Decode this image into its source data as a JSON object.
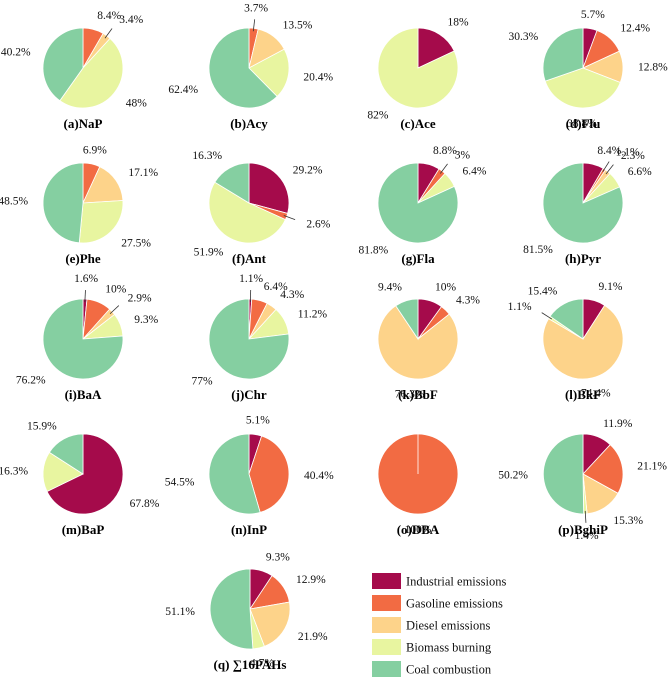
{
  "colors": {
    "industrial": "#a50b4b",
    "gasoline": "#f26b43",
    "diesel": "#fdd38a",
    "biomass": "#e8f5a0",
    "coal": "#85cfa1"
  },
  "legend": [
    {
      "key": "industrial",
      "label": "Industrial emissions"
    },
    {
      "key": "gasoline",
      "label": "Gasoline emissions"
    },
    {
      "key": "diesel",
      "label": "Diesel emissions"
    },
    {
      "key": "biomass",
      "label": "Biomass burning"
    },
    {
      "key": "coal",
      "label": "Coal combustion"
    }
  ],
  "chart_data": [
    {
      "type": "pie",
      "title": "(a)NaP",
      "slices": [
        {
          "key": "industrial",
          "value": 0,
          "label": ""
        },
        {
          "key": "gasoline",
          "value": 8.4,
          "label": "8.4%"
        },
        {
          "key": "diesel",
          "value": 3.4,
          "label": "3.4%"
        },
        {
          "key": "biomass",
          "value": 48,
          "label": "48%"
        },
        {
          "key": "coal",
          "value": 40.2,
          "label": "40.2%"
        }
      ]
    },
    {
      "type": "pie",
      "title": "(b)Acy",
      "slices": [
        {
          "key": "industrial",
          "value": 0,
          "label": ""
        },
        {
          "key": "gasoline",
          "value": 3.7,
          "label": "3.7%"
        },
        {
          "key": "diesel",
          "value": 13.5,
          "label": "13.5%"
        },
        {
          "key": "biomass",
          "value": 20.4,
          "label": "20.4%"
        },
        {
          "key": "coal",
          "value": 62.4,
          "label": "62.4%"
        }
      ]
    },
    {
      "type": "pie",
      "title": "(c)Ace",
      "slices": [
        {
          "key": "industrial",
          "value": 18,
          "label": "18%"
        },
        {
          "key": "gasoline",
          "value": 0,
          "label": ""
        },
        {
          "key": "diesel",
          "value": 0,
          "label": ""
        },
        {
          "key": "biomass",
          "value": 82,
          "label": "82%"
        },
        {
          "key": "coal",
          "value": 0,
          "label": ""
        }
      ]
    },
    {
      "type": "pie",
      "title": "(d)Flu",
      "slices": [
        {
          "key": "industrial",
          "value": 5.7,
          "label": "5.7%"
        },
        {
          "key": "gasoline",
          "value": 12.4,
          "label": "12.4%"
        },
        {
          "key": "diesel",
          "value": 12.8,
          "label": "12.8%"
        },
        {
          "key": "biomass",
          "value": 38.8,
          "label": "38.8%"
        },
        {
          "key": "coal",
          "value": 30.3,
          "label": "30.3%"
        }
      ]
    },
    {
      "type": "pie",
      "title": "(e)Phe",
      "slices": [
        {
          "key": "industrial",
          "value": 0,
          "label": ""
        },
        {
          "key": "gasoline",
          "value": 6.9,
          "label": "6.9%"
        },
        {
          "key": "diesel",
          "value": 17.1,
          "label": "17.1%"
        },
        {
          "key": "biomass",
          "value": 27.5,
          "label": "27.5%"
        },
        {
          "key": "coal",
          "value": 48.5,
          "label": "48.5%"
        }
      ]
    },
    {
      "type": "pie",
      "title": "(f)Ant",
      "slices": [
        {
          "key": "industrial",
          "value": 29.2,
          "label": "29.2%"
        },
        {
          "key": "gasoline",
          "value": 2.6,
          "label": "2.6%"
        },
        {
          "key": "diesel",
          "value": 0,
          "label": ""
        },
        {
          "key": "biomass",
          "value": 51.9,
          "label": "51.9%"
        },
        {
          "key": "coal",
          "value": 16.3,
          "label": "16.3%"
        }
      ]
    },
    {
      "type": "pie",
      "title": "(g)Fla",
      "slices": [
        {
          "key": "industrial",
          "value": 8.8,
          "label": "8.8%"
        },
        {
          "key": "gasoline",
          "value": 3,
          "label": "3%"
        },
        {
          "key": "diesel",
          "value": 0,
          "label": ""
        },
        {
          "key": "biomass",
          "value": 6.4,
          "label": "6.4%"
        },
        {
          "key": "coal",
          "value": 81.8,
          "label": "81.8%"
        }
      ]
    },
    {
      "type": "pie",
      "title": "(h)Pyr",
      "slices": [
        {
          "key": "industrial",
          "value": 8.4,
          "label": "8.4%"
        },
        {
          "key": "gasoline",
          "value": 1.1,
          "label": "1.1%"
        },
        {
          "key": "diesel",
          "value": 2.3,
          "label": "2.3%"
        },
        {
          "key": "biomass",
          "value": 6.6,
          "label": "6.6%"
        },
        {
          "key": "coal",
          "value": 81.5,
          "label": "81.5%"
        }
      ]
    },
    {
      "type": "pie",
      "title": "(i)BaA",
      "slices": [
        {
          "key": "industrial",
          "value": 1.6,
          "label": "1.6%"
        },
        {
          "key": "gasoline",
          "value": 10,
          "label": "10%"
        },
        {
          "key": "diesel",
          "value": 2.9,
          "label": "2.9%"
        },
        {
          "key": "biomass",
          "value": 9.3,
          "label": "9.3%"
        },
        {
          "key": "coal",
          "value": 76.2,
          "label": "76.2%"
        }
      ]
    },
    {
      "type": "pie",
      "title": "(j)Chr",
      "slices": [
        {
          "key": "industrial",
          "value": 1.1,
          "label": "1.1%"
        },
        {
          "key": "gasoline",
          "value": 6.4,
          "label": "6.4%"
        },
        {
          "key": "diesel",
          "value": 4.3,
          "label": "4.3%"
        },
        {
          "key": "biomass",
          "value": 11.2,
          "label": "11.2%"
        },
        {
          "key": "coal",
          "value": 77,
          "label": "77%"
        }
      ]
    },
    {
      "type": "pie",
      "title": "(k)BbF",
      "slices": [
        {
          "key": "industrial",
          "value": 10,
          "label": "10%"
        },
        {
          "key": "gasoline",
          "value": 4.3,
          "label": "4.3%"
        },
        {
          "key": "diesel",
          "value": 76.3,
          "label": "76.3%"
        },
        {
          "key": "biomass",
          "value": 0,
          "label": ""
        },
        {
          "key": "coal",
          "value": 9.4,
          "label": "9.4%"
        }
      ]
    },
    {
      "type": "pie",
      "title": "(l)BkF",
      "slices": [
        {
          "key": "industrial",
          "value": 9.1,
          "label": "9.1%"
        },
        {
          "key": "gasoline",
          "value": 0,
          "label": ""
        },
        {
          "key": "diesel",
          "value": 74.4,
          "label": "74.4%"
        },
        {
          "key": "biomass",
          "value": 1.1,
          "label": "1.1%"
        },
        {
          "key": "coal",
          "value": 15.4,
          "label": "15.4%"
        }
      ]
    },
    {
      "type": "pie",
      "title": "(m)BaP",
      "slices": [
        {
          "key": "industrial",
          "value": 67.8,
          "label": "67.8%"
        },
        {
          "key": "gasoline",
          "value": 0,
          "label": ""
        },
        {
          "key": "diesel",
          "value": 0,
          "label": ""
        },
        {
          "key": "biomass",
          "value": 16.3,
          "label": "16.3%"
        },
        {
          "key": "coal",
          "value": 15.9,
          "label": "15.9%"
        }
      ]
    },
    {
      "type": "pie",
      "title": "(n)InP",
      "slices": [
        {
          "key": "industrial",
          "value": 5.1,
          "label": "5.1%"
        },
        {
          "key": "gasoline",
          "value": 40.4,
          "label": "40.4%"
        },
        {
          "key": "diesel",
          "value": 0,
          "label": ""
        },
        {
          "key": "biomass",
          "value": 0,
          "label": ""
        },
        {
          "key": "coal",
          "value": 54.5,
          "label": "54.5%"
        }
      ]
    },
    {
      "type": "pie",
      "title": "(o)DBA",
      "slices": [
        {
          "key": "industrial",
          "value": 0,
          "label": ""
        },
        {
          "key": "gasoline",
          "value": 100,
          "label": "100%"
        },
        {
          "key": "diesel",
          "value": 0,
          "label": ""
        },
        {
          "key": "biomass",
          "value": 0,
          "label": ""
        },
        {
          "key": "coal",
          "value": 0,
          "label": ""
        }
      ]
    },
    {
      "type": "pie",
      "title": "(p)BghiP",
      "slices": [
        {
          "key": "industrial",
          "value": 11.9,
          "label": "11.9%"
        },
        {
          "key": "gasoline",
          "value": 21.1,
          "label": "21.1%"
        },
        {
          "key": "diesel",
          "value": 15.3,
          "label": "15.3%"
        },
        {
          "key": "biomass",
          "value": 1.4,
          "label": "1.4%"
        },
        {
          "key": "coal",
          "value": 50.2,
          "label": "50.2%"
        }
      ]
    },
    {
      "type": "pie",
      "title": "(q)  ∑16PAHs",
      "slices": [
        {
          "key": "industrial",
          "value": 9.3,
          "label": "9.3%"
        },
        {
          "key": "gasoline",
          "value": 12.9,
          "label": "12.9%"
        },
        {
          "key": "diesel",
          "value": 21.9,
          "label": "21.9%"
        },
        {
          "key": "biomass",
          "value": 4.7,
          "label": "4.7%"
        },
        {
          "key": "coal",
          "value": 51.1,
          "label": "51.1%"
        }
      ]
    }
  ]
}
